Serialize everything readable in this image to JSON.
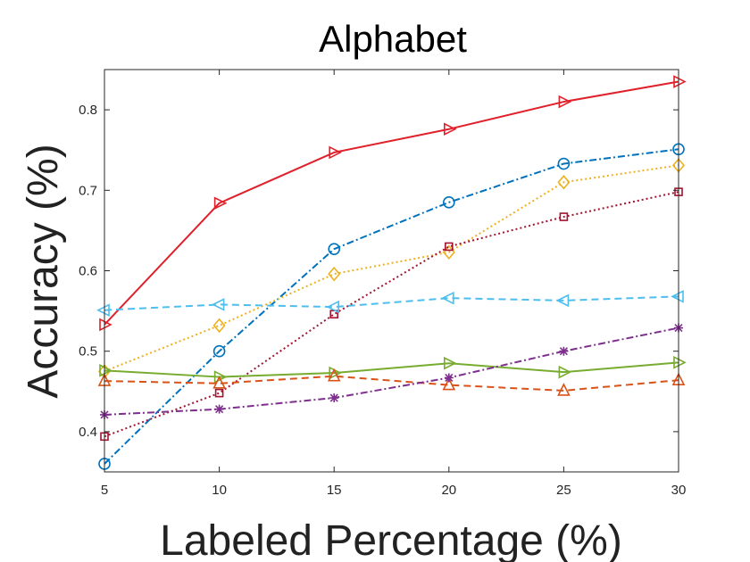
{
  "chart_data": {
    "type": "line",
    "title": "Alphabet",
    "xlabel": "Labeled Percentage (%)",
    "ylabel": "Accuracy (%)",
    "x": [
      5,
      10,
      15,
      20,
      25,
      30
    ],
    "xlim": [
      5,
      30
    ],
    "ylim": [
      0.35,
      0.85
    ],
    "xticks": [
      "5",
      "10",
      "15",
      "20",
      "25",
      "30"
    ],
    "yticks": [
      0.4,
      0.5,
      0.6,
      0.7,
      0.8
    ],
    "ytick_labels": [
      "0.4",
      "0.5",
      "0.6",
      "0.7",
      "0.8"
    ],
    "grid": false,
    "series": [
      {
        "values": [
          0.533,
          0.684,
          0.747,
          0.776,
          0.81,
          0.835
        ],
        "color": "#e0202a",
        "dash": "solid",
        "marker": "triangle-right"
      },
      {
        "values": [
          0.36,
          0.5,
          0.627,
          0.685,
          0.733,
          0.751
        ],
        "color": "#0072bd",
        "dash": "dashdot",
        "marker": "circle"
      },
      {
        "values": [
          0.475,
          0.532,
          0.596,
          0.623,
          0.71,
          0.731
        ],
        "color": "#edb120",
        "dash": "dotted",
        "marker": "diamond"
      },
      {
        "values": [
          0.394,
          0.448,
          0.546,
          0.63,
          0.667,
          0.698
        ],
        "color": "#a2142f",
        "dash": "dotted",
        "marker": "square"
      },
      {
        "values": [
          0.551,
          0.558,
          0.555,
          0.566,
          0.563,
          0.568
        ],
        "color": "#4dbeee",
        "dash": "dashed",
        "marker": "triangle-left"
      },
      {
        "values": [
          0.476,
          0.468,
          0.473,
          0.485,
          0.474,
          0.486
        ],
        "color": "#77ac30",
        "dash": "solid",
        "marker": "triangle-right"
      },
      {
        "values": [
          0.463,
          0.46,
          0.469,
          0.458,
          0.451,
          0.464
        ],
        "color": "#d95319",
        "dash": "dashed",
        "marker": "triangle-up"
      },
      {
        "values": [
          0.421,
          0.428,
          0.442,
          0.467,
          0.5,
          0.529
        ],
        "color": "#7e2f8e",
        "dash": "dashdot",
        "marker": "asterisk"
      }
    ]
  }
}
